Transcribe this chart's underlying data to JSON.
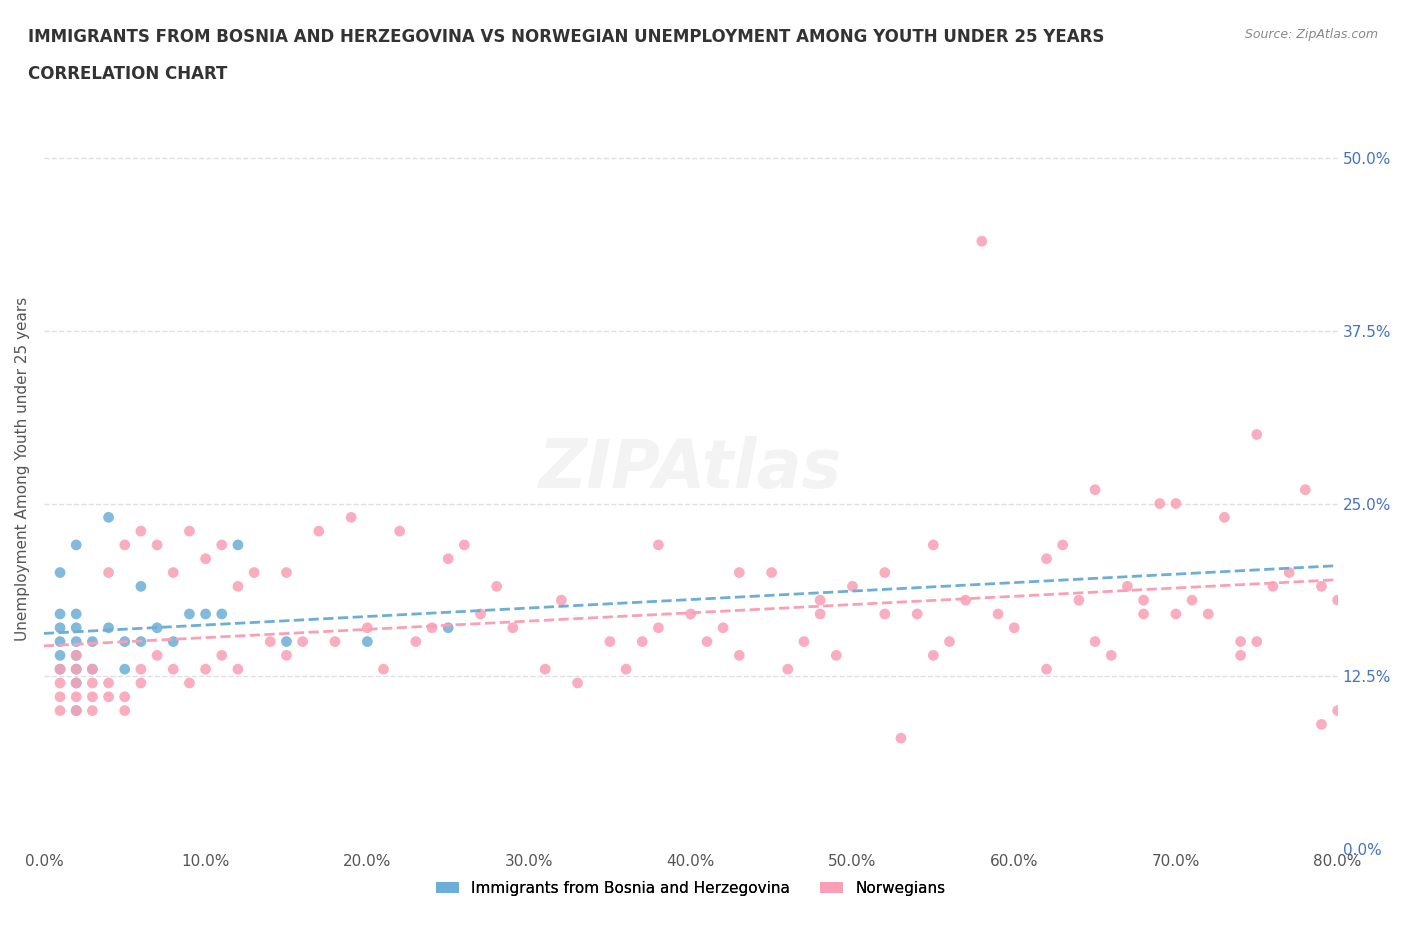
{
  "title_line1": "IMMIGRANTS FROM BOSNIA AND HERZEGOVINA VS NORWEGIAN UNEMPLOYMENT AMONG YOUTH UNDER 25 YEARS",
  "title_line2": "CORRELATION CHART",
  "source_text": "Source: ZipAtlas.com",
  "ylabel": "Unemployment Among Youth under 25 years",
  "xlabel": "",
  "legend_label1": "Immigrants from Bosnia and Herzegovina",
  "legend_label2": "Norwegians",
  "color_blue": "#6baed6",
  "color_pink": "#fa9fb5",
  "color_blue_dark": "#3182bd",
  "color_pink_dark": "#f768a1",
  "xlim": [
    0.0,
    0.8
  ],
  "ylim": [
    0.0,
    0.55
  ],
  "xticks": [
    0.0,
    0.1,
    0.2,
    0.3,
    0.4,
    0.5,
    0.6,
    0.7,
    0.8
  ],
  "yticks": [
    0.0,
    0.125,
    0.25,
    0.375,
    0.5
  ],
  "blue_x": [
    0.01,
    0.01,
    0.01,
    0.01,
    0.01,
    0.01,
    0.02,
    0.02,
    0.02,
    0.02,
    0.02,
    0.02,
    0.02,
    0.02,
    0.03,
    0.03,
    0.04,
    0.04,
    0.05,
    0.05,
    0.06,
    0.06,
    0.07,
    0.08,
    0.09,
    0.1,
    0.11,
    0.12,
    0.15,
    0.2,
    0.25
  ],
  "blue_y": [
    0.13,
    0.14,
    0.15,
    0.16,
    0.17,
    0.2,
    0.1,
    0.12,
    0.13,
    0.14,
    0.15,
    0.16,
    0.17,
    0.22,
    0.13,
    0.15,
    0.16,
    0.24,
    0.13,
    0.15,
    0.15,
    0.19,
    0.16,
    0.15,
    0.17,
    0.17,
    0.17,
    0.22,
    0.15,
    0.15,
    0.16
  ],
  "pink_x": [
    0.01,
    0.01,
    0.01,
    0.01,
    0.02,
    0.02,
    0.02,
    0.02,
    0.02,
    0.03,
    0.03,
    0.03,
    0.03,
    0.04,
    0.04,
    0.04,
    0.05,
    0.05,
    0.05,
    0.06,
    0.06,
    0.06,
    0.07,
    0.07,
    0.08,
    0.08,
    0.09,
    0.09,
    0.1,
    0.1,
    0.11,
    0.11,
    0.12,
    0.12,
    0.13,
    0.14,
    0.15,
    0.15,
    0.16,
    0.17,
    0.18,
    0.19,
    0.2,
    0.22,
    0.24,
    0.25,
    0.27,
    0.29,
    0.32,
    0.35,
    0.38,
    0.4,
    0.42,
    0.45,
    0.48,
    0.5,
    0.52,
    0.55,
    0.57,
    0.6,
    0.62,
    0.64,
    0.67,
    0.69,
    0.71,
    0.73,
    0.75,
    0.77,
    0.79,
    0.8,
    0.65,
    0.7,
    0.72,
    0.78,
    0.58,
    0.53,
    0.47,
    0.43,
    0.37,
    0.33,
    0.28,
    0.23,
    0.21,
    0.26,
    0.31,
    0.36,
    0.41,
    0.46,
    0.49,
    0.54,
    0.56,
    0.59,
    0.63,
    0.66,
    0.68,
    0.74,
    0.76,
    0.62,
    0.68,
    0.74,
    0.8,
    0.55,
    0.65,
    0.7,
    0.75,
    0.79,
    0.48,
    0.52,
    0.43,
    0.38
  ],
  "pink_y": [
    0.11,
    0.12,
    0.13,
    0.1,
    0.12,
    0.11,
    0.13,
    0.1,
    0.14,
    0.1,
    0.11,
    0.12,
    0.13,
    0.11,
    0.12,
    0.2,
    0.1,
    0.11,
    0.22,
    0.12,
    0.13,
    0.23,
    0.14,
    0.22,
    0.13,
    0.2,
    0.12,
    0.23,
    0.13,
    0.21,
    0.14,
    0.22,
    0.13,
    0.19,
    0.2,
    0.15,
    0.14,
    0.2,
    0.15,
    0.23,
    0.15,
    0.24,
    0.16,
    0.23,
    0.16,
    0.21,
    0.17,
    0.16,
    0.18,
    0.15,
    0.22,
    0.17,
    0.16,
    0.2,
    0.18,
    0.19,
    0.17,
    0.22,
    0.18,
    0.16,
    0.21,
    0.18,
    0.19,
    0.25,
    0.18,
    0.24,
    0.3,
    0.2,
    0.19,
    0.1,
    0.26,
    0.25,
    0.17,
    0.26,
    0.44,
    0.08,
    0.15,
    0.2,
    0.15,
    0.12,
    0.19,
    0.15,
    0.13,
    0.22,
    0.13,
    0.13,
    0.15,
    0.13,
    0.14,
    0.17,
    0.15,
    0.17,
    0.22,
    0.14,
    0.18,
    0.15,
    0.19,
    0.13,
    0.17,
    0.14,
    0.18,
    0.14,
    0.15,
    0.17,
    0.15,
    0.09,
    0.17,
    0.2,
    0.14,
    0.16
  ],
  "background_color": "#ffffff",
  "grid_color": "#e0e0e0"
}
